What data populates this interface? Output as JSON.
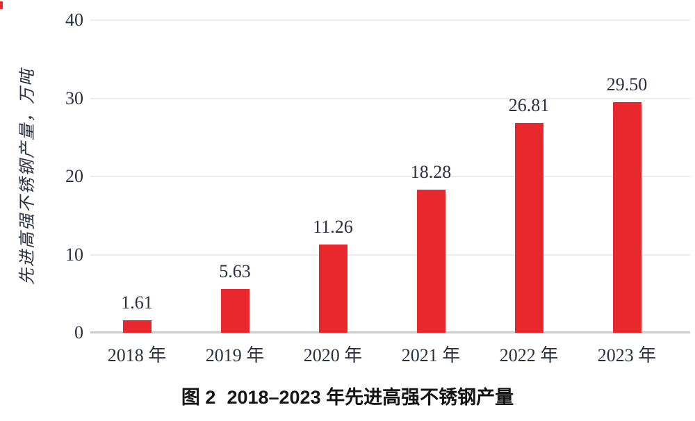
{
  "chart_data": {
    "type": "bar",
    "title": "图 2 2018–2023 年先进高强不锈钢产量",
    "categories": [
      "2018 年",
      "2019 年",
      "2020 年",
      "2021 年",
      "2022 年",
      "2023 年"
    ],
    "values": [
      1.61,
      5.63,
      11.26,
      18.28,
      26.81,
      29.5
    ],
    "data_labels": [
      "1.61",
      "5.63",
      "11.26",
      "18.28",
      "26.81",
      "29.50"
    ],
    "xlabel": "",
    "ylabel": "先进高强不锈钢产量，万吨",
    "ylim": [
      0,
      40
    ],
    "yticks": [
      0,
      10,
      20,
      30,
      40
    ],
    "grid": true,
    "legend": "none",
    "bar_color": "#e9282d"
  },
  "caption": {
    "prefix": "图 2",
    "text": "2018–2023 年先进高强不锈钢产量"
  },
  "colors": {
    "bar_red": "#e9282d",
    "label_text": "#2a3040",
    "grid_line": "#ececec",
    "axis_line": "#cbcbcb",
    "caption_text": "#141414",
    "background": "#ffffff"
  }
}
